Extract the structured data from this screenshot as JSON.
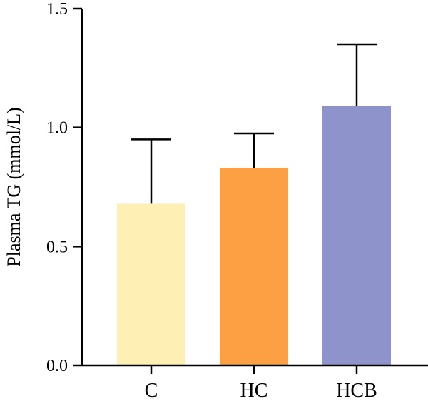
{
  "chart_data": {
    "type": "bar",
    "categories": [
      "C",
      "HC",
      "HCB"
    ],
    "values": [
      0.68,
      0.83,
      1.09
    ],
    "errors": [
      0.27,
      0.145,
      0.26
    ],
    "colors": [
      "#FEF0B4",
      "#FD9F43",
      "#8E93CB"
    ],
    "ylabel": "Plasma TG (mmol/L)",
    "ylim": [
      0,
      1.5
    ],
    "yticks": [
      "0.0",
      "0.5",
      "1.0",
      "1.5"
    ],
    "ytick_values": [
      0,
      0.5,
      1.0,
      1.5
    ]
  }
}
